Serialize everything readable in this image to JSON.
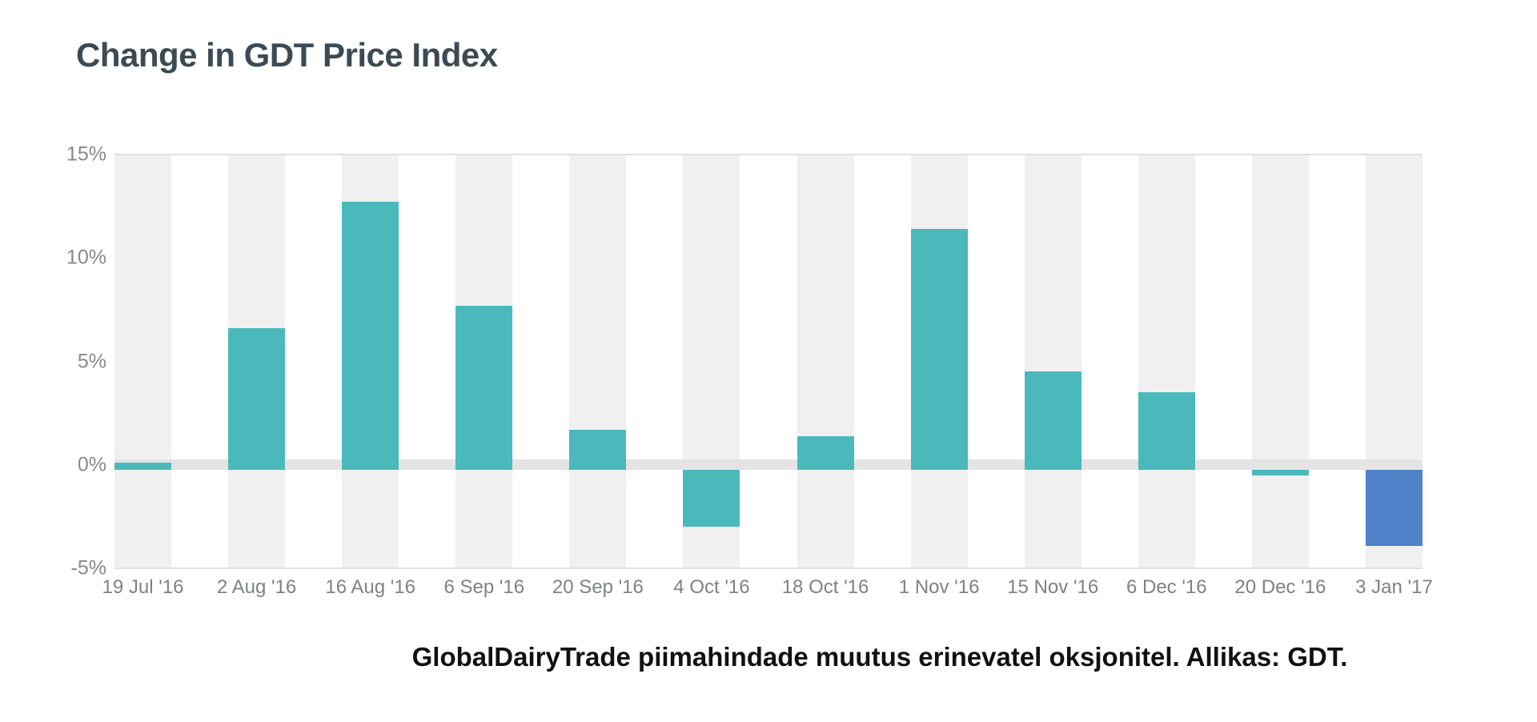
{
  "page": {
    "title": "Change in GDT Price Index",
    "caption": "GlobalDairyTrade piimahindade muutus erinevatel oksjonitel. Allikas: GDT."
  },
  "colors": {
    "bar_teal": "#4bb9bc",
    "bar_blue_highlight": "#4d82c8",
    "title_text": "#3b4a54",
    "axis_text": "#85898d",
    "stripe_gray": "#f0f0f0",
    "gridline": "#e0e0e0",
    "zero_band": "#e4e4e4",
    "background": "#ffffff"
  },
  "chart_data": {
    "type": "bar",
    "title": "Change in GDT Price Index",
    "caption": "GlobalDairyTrade piimahindade muutus erinevatel oksjonitel. Allikas: GDT.",
    "unit": "%",
    "categories": [
      "19 Jul '16",
      "2 Aug '16",
      "16 Aug '16",
      "6 Sep '16",
      "20 Sep '16",
      "4 Oct '16",
      "18 Oct '16",
      "1 Nov '16",
      "15 Nov '16",
      "6 Dec '16",
      "20 Dec '16",
      "3 Jan '17"
    ],
    "values": [
      0.1,
      6.6,
      12.7,
      7.7,
      1.7,
      -3.0,
      1.4,
      11.4,
      4.5,
      3.5,
      -0.5,
      -3.9
    ],
    "bar_colors": [
      "#4bb9bc",
      "#4bb9bc",
      "#4bb9bc",
      "#4bb9bc",
      "#4bb9bc",
      "#4bb9bc",
      "#4bb9bc",
      "#4bb9bc",
      "#4bb9bc",
      "#4bb9bc",
      "#4bb9bc",
      "#4d82c8"
    ],
    "ylim": [
      -5,
      15
    ],
    "yticks": [
      {
        "label": "15%",
        "value": 15
      },
      {
        "label": "10%",
        "value": 10
      },
      {
        "label": "5%",
        "value": 5
      },
      {
        "label": "0%",
        "value": 0
      },
      {
        "label": "-5%",
        "value": -5
      }
    ],
    "xlabel": "",
    "ylabel": "",
    "legend": "none",
    "grid": "horizontal lines at ymax and ymin only, thick light band at 0, alternating gray vertical stripe behind each bar"
  }
}
